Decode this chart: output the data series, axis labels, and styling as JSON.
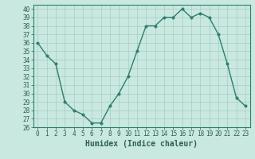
{
  "x": [
    0,
    1,
    2,
    3,
    4,
    5,
    6,
    7,
    8,
    9,
    10,
    11,
    12,
    13,
    14,
    15,
    16,
    17,
    18,
    19,
    20,
    21,
    22,
    23
  ],
  "y": [
    36,
    34.5,
    33.5,
    29,
    28,
    27.5,
    26.5,
    26.5,
    28.5,
    30,
    32,
    35,
    38,
    38,
    39,
    39,
    40,
    39,
    39.5,
    39,
    37,
    33.5,
    29.5,
    28.5
  ],
  "line_color": "#2e7d6e",
  "marker_color": "#2e7d6e",
  "bg_color": "#c8e8e0",
  "grid_color": "#a8ccc4",
  "xlabel": "Humidex (Indice chaleur)",
  "xlim": [
    -0.5,
    23.5
  ],
  "ylim": [
    26,
    40.5
  ],
  "yticks": [
    26,
    27,
    28,
    29,
    30,
    31,
    32,
    33,
    34,
    35,
    36,
    37,
    38,
    39,
    40
  ],
  "xticks": [
    0,
    1,
    2,
    3,
    4,
    5,
    6,
    7,
    8,
    9,
    10,
    11,
    12,
    13,
    14,
    15,
    16,
    17,
    18,
    19,
    20,
    21,
    22,
    23
  ],
  "tick_fontsize": 5.5,
  "xlabel_fontsize": 7,
  "marker_size": 2.5,
  "line_width": 1.0
}
